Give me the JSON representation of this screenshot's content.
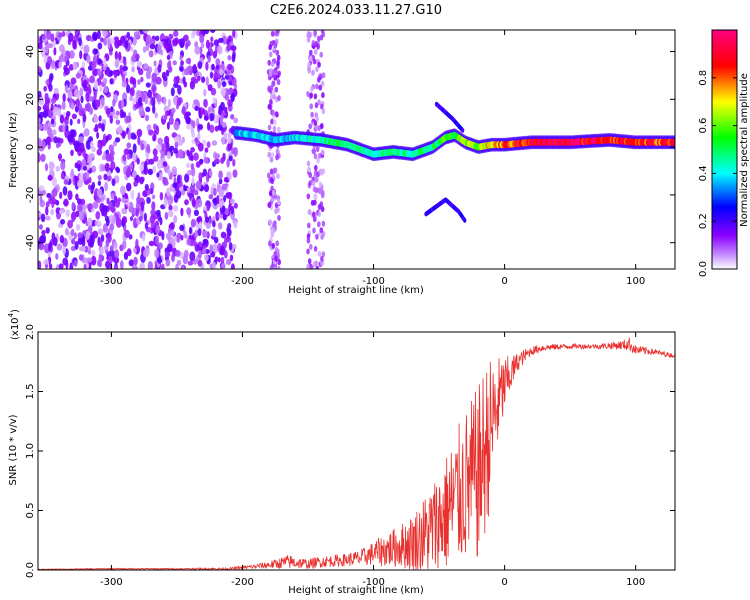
{
  "title": "C2E6.2024.033.11.27.G10",
  "chart_data": [
    {
      "type": "heatmap",
      "xlabel": "Height of straight line (km)",
      "ylabel": "Frequency (Hz)",
      "xlim": [
        -356,
        130
      ],
      "ylim": [
        -51,
        49
      ],
      "xticks": [
        -300,
        -200,
        -100,
        0,
        100
      ],
      "yticks": [
        -40,
        -20,
        0,
        20,
        40
      ],
      "colorbar": {
        "label": "Normalized spectral amplitude",
        "range": [
          0,
          1
        ],
        "ticks": [
          0.0,
          0.2,
          0.4,
          0.6,
          0.8
        ],
        "colors": [
          "#ffffff",
          "#8b00ff",
          "#0000ff",
          "#00ffff",
          "#00ff00",
          "#ffff00",
          "#ff0000",
          "#ff007f"
        ]
      },
      "noise_region_x": [
        -356,
        -205
      ],
      "noise_stripes_x": [
        [
          -180,
          -172
        ],
        [
          -150,
          -138
        ]
      ],
      "ridge": {
        "x": [
          -205,
          -190,
          -175,
          -160,
          -140,
          -120,
          -100,
          -85,
          -70,
          -55,
          -45,
          -38,
          -30,
          -20,
          -10,
          0,
          20,
          50,
          80,
          100,
          130
        ],
        "y": [
          6,
          5,
          3,
          4,
          3,
          1,
          -3,
          -2,
          -3,
          0,
          4,
          5,
          2,
          0,
          1,
          1,
          2,
          2,
          3,
          2,
          2
        ],
        "amplitude": [
          0.35,
          0.4,
          0.35,
          0.4,
          0.45,
          0.5,
          0.45,
          0.45,
          0.45,
          0.5,
          0.55,
          0.55,
          0.6,
          0.65,
          0.7,
          0.8,
          0.9,
          0.95,
          0.9,
          0.85,
          0.85
        ]
      },
      "branches": [
        {
          "x": [
            -52,
            -40,
            -32
          ],
          "y": [
            18,
            12,
            7
          ]
        },
        {
          "x": [
            -60,
            -45,
            -35,
            -30
          ],
          "y": [
            -28,
            -22,
            -27,
            -31
          ]
        }
      ]
    },
    {
      "type": "line",
      "xlabel": "Height of straight line (km)",
      "ylabel": "SNR (10 * v/v)",
      "y_scale_label": "(x10",
      "y_scale_exponent": "4",
      "xlim": [
        -356,
        130
      ],
      "ylim": [
        0,
        2.0
      ],
      "xticks": [
        -300,
        -200,
        -100,
        0,
        100
      ],
      "yticks": [
        0.0,
        0.5,
        1.0,
        1.5,
        2.0
      ],
      "color": "#e8312e",
      "series": [
        {
          "x": [
            -356,
            -300,
            -250,
            -210,
            -190,
            -175,
            -165,
            -150,
            -140,
            -125,
            -110,
            -100,
            -90,
            -80,
            -70,
            -60,
            -50,
            -40,
            -30,
            -20,
            -15,
            -10,
            -5,
            0,
            5,
            10,
            20,
            30,
            50,
            70,
            90,
            95,
            100,
            110,
            120,
            130
          ],
          "y": [
            0.005,
            0.01,
            0.01,
            0.01,
            0.03,
            0.05,
            0.07,
            0.05,
            0.07,
            0.08,
            0.1,
            0.14,
            0.17,
            0.2,
            0.23,
            0.3,
            0.4,
            0.55,
            0.7,
            0.8,
            1.0,
            1.2,
            1.4,
            1.55,
            1.65,
            1.75,
            1.84,
            1.87,
            1.88,
            1.88,
            1.89,
            1.9,
            1.85,
            1.84,
            1.82,
            1.8
          ],
          "spread": [
            0.003,
            0.005,
            0.005,
            0.01,
            0.02,
            0.04,
            0.06,
            0.04,
            0.05,
            0.05,
            0.07,
            0.1,
            0.15,
            0.18,
            0.25,
            0.35,
            0.45,
            0.55,
            0.65,
            0.75,
            0.75,
            0.6,
            0.4,
            0.25,
            0.15,
            0.08,
            0.04,
            0.03,
            0.02,
            0.02,
            0.04,
            0.06,
            0.04,
            0.03,
            0.02,
            0.02
          ]
        }
      ]
    }
  ]
}
